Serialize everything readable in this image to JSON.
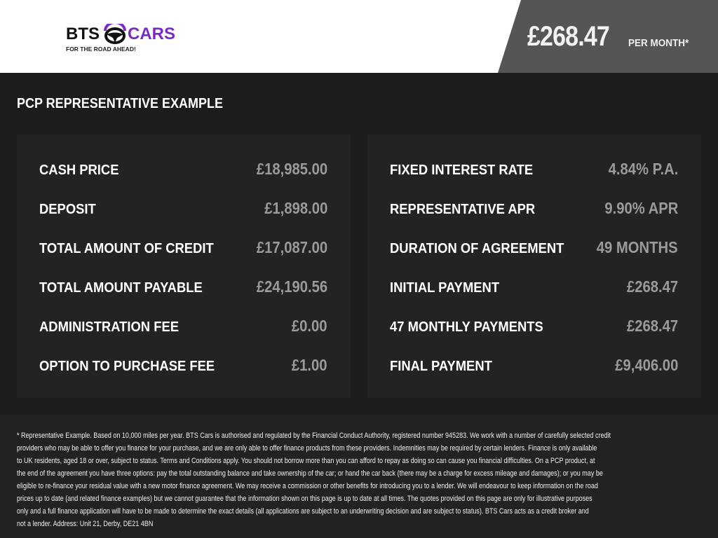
{
  "header": {
    "logo_text_left": "BTS",
    "logo_text_right": "CARS",
    "logo_tagline": "FOR THE ROAD AHEAD!",
    "price": "£268.47",
    "price_suffix": "PER MONTH*",
    "colors": {
      "brand_purple": "#7a2bc4",
      "panel": "#555555"
    }
  },
  "title": "PCP REPRESENTATIVE EXAMPLE",
  "left_card": [
    {
      "label": "CASH PRICE",
      "value": "£18,985.00"
    },
    {
      "label": "DEPOSIT",
      "value": "£1,898.00"
    },
    {
      "label": "TOTAL AMOUNT OF CREDIT",
      "value": "£17,087.00"
    },
    {
      "label": "TOTAL AMOUNT PAYABLE",
      "value": "£24,190.56"
    },
    {
      "label": "ADMINISTRATION FEE",
      "value": "£0.00"
    },
    {
      "label": "OPTION TO PURCHASE FEE",
      "value": "£1.00"
    }
  ],
  "right_card": [
    {
      "label": "FIXED INTEREST RATE",
      "value": "4.84% P.A."
    },
    {
      "label": "REPRESENTATIVE APR",
      "value": "9.90% APR"
    },
    {
      "label": "DURATION OF AGREEMENT",
      "value": "49 MONTHS"
    },
    {
      "label": "INITIAL PAYMENT",
      "value": "£268.47"
    },
    {
      "label": "47 MONTHLY PAYMENTS",
      "value": "£268.47"
    },
    {
      "label": "FINAL PAYMENT",
      "value": "£9,406.00"
    }
  ],
  "footnote": [
    "* Representative Example. Based on 10,000 miles per year. BTS Cars is authorised and regulated by the Financial Conduct Authority, registered number 945283. We work with a number of carefully selected credit",
    "providers who may be able to offer you finance for your purchase, and we are only able to offer finance products from these providers. Indemnities may be required by certain lenders. Finance is only available",
    "to UK residents, aged 18 or over, subject to status. Terms and Conditions apply. You should not borrow more than you can afford to repay as doing so can cause you financial difficulties. On a PCP product, at",
    "the end of the agreement you have three options: pay the total outstanding balance and take ownership of the car; or hand the car back (there may be a charge for excess mileage and damages); or you may be",
    "eligible to re-finance your residual value with a new motor finance agreement. We may receive a commission or other benefits for introducing you to a lender. We will endeavour to keep information on the road",
    "prices up to date (and related finance examples) but we cannot guarantee that the information shown on this page is up to date at all times. The quotes provided on this page are only for illustrative purposes",
    "only and a full finance application will have to be made to determine the exact details (all applications are subject to an underwriting decision and are subject to status). BTS Cars acts as a credit broker and",
    "not a lender. Address: Unit 21, Derby, DE21 4BN"
  ]
}
